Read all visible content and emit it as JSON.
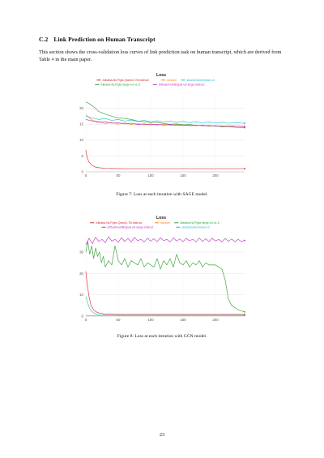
{
  "section": {
    "number": "C.2",
    "title": "Link Prediction on Human Transcript"
  },
  "intro": {
    "text_before": "This section shows the cross-validation loss curves of link prediction task on human transcript, which are derived from Table ",
    "ref": "4",
    "text_after": " in the main paper."
  },
  "chart_data": [
    {
      "type": "line",
      "title": "Loss",
      "xlabel": "",
      "ylabel": "",
      "xlim": [
        0,
        245
      ],
      "ylim": [
        0,
        24
      ],
      "xticks": [
        0,
        50,
        100,
        150,
        200
      ],
      "yticks": [
        0,
        5,
        10,
        15,
        20
      ],
      "grid": true,
      "legend_position": "top",
      "series": [
        {
          "name": "Alibaba-NLP/gte-Qwen2-7B-instruct",
          "color": "#d62728",
          "x": [
            0,
            2,
            5,
            10,
            15,
            20,
            25,
            30,
            40,
            60,
            100,
            150,
            200,
            245
          ],
          "y": [
            6.8,
            4.5,
            3.0,
            2.0,
            1.5,
            1.3,
            1.2,
            1.1,
            1.05,
            1.0,
            1.0,
            1.0,
            1.0,
            1.0
          ]
        },
        {
          "name": "random",
          "color": "#ff7f0e",
          "x": [
            0,
            10,
            20,
            30,
            40,
            50,
            60,
            70,
            80,
            90,
            100,
            110,
            120,
            130,
            140,
            150,
            160,
            170,
            180,
            190,
            200,
            210,
            220,
            230,
            245
          ],
          "y": [
            18.0,
            16.2,
            15.8,
            15.2,
            15.6,
            15.0,
            15.4,
            14.9,
            15.3,
            14.8,
            15.1,
            14.7,
            15.0,
            14.6,
            14.9,
            14.5,
            14.8,
            14.5,
            14.7,
            14.4,
            14.6,
            14.3,
            14.5,
            14.4,
            14.2
          ]
        },
        {
          "name": "sinai/phobert-base-v2",
          "color": "#17becf",
          "x": [
            0,
            10,
            20,
            30,
            40,
            50,
            60,
            70,
            80,
            90,
            100,
            110,
            120,
            130,
            140,
            150,
            160,
            170,
            180,
            190,
            200,
            210,
            220,
            230,
            245
          ],
          "y": [
            17.5,
            17.0,
            16.5,
            16.8,
            16.2,
            16.5,
            16.0,
            16.3,
            15.9,
            16.2,
            15.8,
            16.1,
            15.7,
            16.0,
            15.6,
            15.9,
            15.5,
            15.8,
            15.4,
            15.7,
            15.4,
            15.6,
            15.3,
            15.5,
            15.3
          ]
        },
        {
          "name": "Alibaba-NLP/gte-large-en-v1.5",
          "color": "#2ca02c",
          "x": [
            0,
            5,
            10,
            15,
            20,
            30,
            40,
            50,
            60,
            70,
            80,
            90,
            100,
            110,
            120,
            130,
            140,
            150,
            160,
            170,
            180,
            190,
            200,
            210,
            220,
            230,
            245
          ],
          "y": [
            22.0,
            21.5,
            20.8,
            20.0,
            19.0,
            18.2,
            17.5,
            17.0,
            16.8,
            16.5,
            16.0,
            15.8,
            15.5,
            15.6,
            15.2,
            15.0,
            15.1,
            14.8,
            14.9,
            14.6,
            14.7,
            14.4,
            14.5,
            14.2,
            14.3,
            14.0,
            13.9
          ]
        },
        {
          "name": "intfloat/multilingual-e5-large-instruct",
          "color": "#c030c0",
          "x": [
            0,
            10,
            20,
            30,
            40,
            50,
            60,
            70,
            80,
            90,
            100,
            110,
            120,
            130,
            140,
            150,
            160,
            170,
            180,
            190,
            200,
            210,
            220,
            230,
            245
          ],
          "y": [
            16.5,
            16.0,
            15.6,
            15.8,
            15.3,
            15.5,
            15.1,
            15.3,
            14.9,
            15.1,
            14.8,
            15.0,
            14.7,
            14.9,
            14.6,
            14.8,
            14.5,
            14.7,
            14.5,
            14.6,
            14.4,
            14.5,
            14.3,
            14.4,
            14.3
          ]
        }
      ]
    },
    {
      "type": "line",
      "title": "Loss",
      "xlabel": "",
      "ylabel": "",
      "xlim": [
        0,
        245
      ],
      "ylim": [
        0,
        38
      ],
      "xticks": [
        0,
        50,
        100,
        150,
        200
      ],
      "yticks": [
        0,
        10,
        20,
        30
      ],
      "grid": true,
      "legend_position": "top",
      "series": [
        {
          "name": "Alibaba-NLP/gte-Qwen2-7B-instruct",
          "color": "#d62728",
          "x": [
            0,
            2,
            5,
            8,
            12,
            16,
            20,
            25,
            30,
            40,
            50,
            60,
            100,
            150,
            200,
            245
          ],
          "y": [
            21.0,
            15.0,
            9.0,
            5.0,
            3.0,
            2.0,
            1.5,
            1.2,
            1.0,
            0.9,
            0.8,
            0.8,
            0.8,
            0.8,
            0.8,
            0.8
          ]
        },
        {
          "name": "random",
          "color": "#ff7f0e",
          "x": [
            0,
            100,
            245
          ],
          "y": [
            0.3,
            0.3,
            0.3
          ]
        },
        {
          "name": "Alibaba-NLP/gte-large-en-v1.5",
          "color": "#2ca02c",
          "x": [
            0,
            3,
            6,
            9,
            12,
            15,
            18,
            21,
            24,
            27,
            30,
            35,
            40,
            45,
            50,
            55,
            60,
            65,
            70,
            75,
            80,
            85,
            90,
            95,
            100,
            105,
            110,
            115,
            120,
            125,
            130,
            135,
            140,
            145,
            150,
            155,
            160,
            165,
            170,
            175,
            180,
            185,
            190,
            195,
            200,
            205,
            210,
            215,
            220,
            225,
            230,
            235,
            240,
            245
          ],
          "y": [
            30.0,
            35.0,
            29.0,
            33.0,
            27.0,
            32.0,
            28.0,
            30.0,
            25.0,
            28.0,
            23.0,
            26.0,
            24.0,
            33.0,
            26.0,
            24.0,
            27.0,
            23.0,
            26.0,
            25.0,
            24.0,
            27.0,
            23.0,
            25.0,
            24.0,
            23.0,
            27.0,
            22.0,
            26.0,
            24.0,
            27.0,
            23.0,
            29.0,
            25.0,
            24.0,
            26.0,
            23.0,
            25.0,
            24.0,
            26.0,
            23.0,
            25.0,
            24.0,
            24.0,
            24.0,
            23.0,
            22.0,
            17.0,
            8.0,
            5.0,
            4.0,
            3.0,
            2.5,
            2.0
          ]
        },
        {
          "name": "intfloat/multilingual-e5-large-instruct",
          "color": "#c030c0",
          "x": [
            0,
            5,
            10,
            15,
            20,
            25,
            30,
            35,
            40,
            45,
            50,
            55,
            60,
            65,
            70,
            75,
            80,
            85,
            90,
            95,
            100,
            105,
            110,
            115,
            120,
            125,
            130,
            135,
            140,
            145,
            150,
            155,
            160,
            165,
            170,
            175,
            180,
            185,
            190,
            195,
            200,
            205,
            210,
            215,
            220,
            225,
            230,
            235,
            240,
            245
          ],
          "y": [
            33.5,
            36.5,
            34.0,
            37.0,
            35.0,
            36.0,
            34.5,
            37.2,
            35.2,
            36.0,
            34.6,
            36.8,
            35.0,
            36.4,
            34.8,
            36.9,
            35.3,
            36.1,
            34.7,
            36.6,
            35.1,
            36.3,
            34.9,
            36.8,
            35.4,
            36.0,
            34.8,
            36.7,
            35.2,
            36.2,
            34.9,
            36.5,
            35.3,
            36.1,
            34.8,
            36.6,
            35.0,
            36.3,
            34.9,
            36.5,
            35.2,
            36.0,
            34.8,
            36.4,
            35.1,
            36.2,
            34.9,
            36.0,
            35.0,
            35.5
          ]
        },
        {
          "name": "sinai/phobert-base-v2",
          "color": "#17becf",
          "x": [
            0,
            3,
            6,
            10,
            14,
            18,
            22,
            26,
            30,
            40,
            60,
            100,
            150,
            200,
            245
          ],
          "y": [
            9.0,
            6.0,
            3.5,
            2.0,
            1.2,
            0.8,
            0.6,
            0.5,
            0.4,
            0.4,
            0.4,
            0.4,
            0.4,
            0.4,
            0.4
          ]
        }
      ]
    }
  ],
  "captions": {
    "fig1": "Figure 7: Loss at each iteration with SAGE model.",
    "fig2": "Figure 8: Loss at each iteration with GCN model."
  },
  "page_number": "23"
}
